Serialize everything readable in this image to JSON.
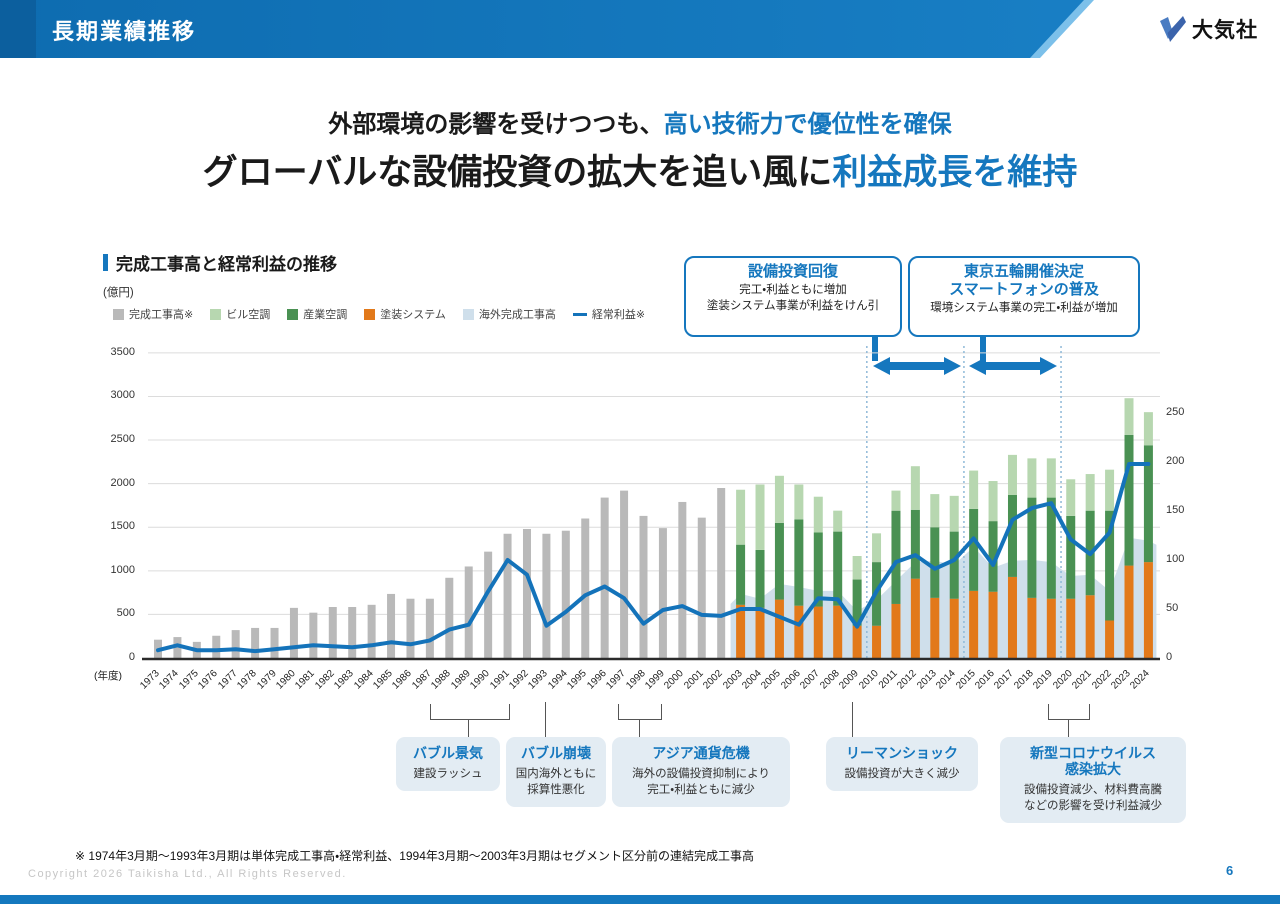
{
  "header": {
    "title": "長期業績推移",
    "logo_text": "大気社"
  },
  "headline": {
    "line1_black": "外部環境の影響を受けつつも、",
    "line1_blue": "高い技術力で優位性を確保",
    "line2_black": "グローバルな設備投資の拡大を追い風に",
    "line2_blue": "利益成長を維持"
  },
  "chart": {
    "section_title": "完成工事高と経常利益の推移",
    "unit_label": "(億円)",
    "x_axis_label": "(年度)",
    "callouts": [
      {
        "title": "設備投資回復",
        "body": "完工・利益ともに増加\n塗装システム事業が利益をけん引"
      },
      {
        "title": "東京五輪開催決定\nスマートフォンの普及",
        "body": "環境システム事業の完工・利益が増加"
      }
    ],
    "events": [
      {
        "title": "バブル景気",
        "body": "建設ラッシュ"
      },
      {
        "title": "バブル崩壊",
        "body": "国内海外ともに\n採算性悪化"
      },
      {
        "title": "アジア通貨危機",
        "body": "海外の設備投資抑制により\n完工・利益ともに減少"
      },
      {
        "title": "リーマンショック",
        "body": "設備投資が大きく減少"
      },
      {
        "title": "新型コロナウイルス\n感染拡大",
        "body": "設備投資減少、材料費高騰\nなどの影響を受け利益減少"
      }
    ]
  },
  "chart_data": {
    "type": "combo-stacked-bar-area-line",
    "categories": [
      "1973",
      "1974",
      "1975",
      "1976",
      "1977",
      "1978",
      "1979",
      "1980",
      "1981",
      "1982",
      "1983",
      "1984",
      "1985",
      "1986",
      "1987",
      "1988",
      "1989",
      "1990",
      "1991",
      "1992",
      "1993",
      "1994",
      "1995",
      "1996",
      "1997",
      "1998",
      "1999",
      "2000",
      "2001",
      "2002",
      "2003",
      "2004",
      "2005",
      "2006",
      "2007",
      "2008",
      "2009",
      "2010",
      "2011",
      "2012",
      "2013",
      "2014",
      "2015",
      "2016",
      "2017",
      "2018",
      "2019",
      "2020",
      "2021",
      "2022",
      "2023",
      "2024"
    ],
    "left_axis": {
      "label": "(億円)",
      "min": 0,
      "max": 3500,
      "step": 500
    },
    "right_axis": {
      "min": 0,
      "max": 250,
      "step": 50
    },
    "grid": true,
    "legend_position": "top-left",
    "dotted_boundaries": [
      36.5,
      41.5,
      46.5
    ],
    "series": [
      {
        "name": "完成工事高※",
        "type": "bar",
        "color": "#b9b9b9",
        "values": [
          210,
          240,
          185,
          255,
          320,
          345,
          345,
          575,
          520,
          585,
          585,
          610,
          735,
          680,
          680,
          920,
          1050,
          1220,
          1425,
          1480,
          1425,
          1460,
          1600,
          1840,
          1920,
          1630,
          1490,
          1790,
          1610,
          1950,
          null,
          null,
          null,
          null,
          null,
          null,
          null,
          null,
          null,
          null,
          null,
          null,
          null,
          null,
          null,
          null,
          null,
          null,
          null,
          null,
          null,
          null
        ]
      },
      {
        "name": "塗装システム",
        "type": "bar-stacked",
        "color": "#e2791a",
        "values": [
          null,
          null,
          null,
          null,
          null,
          null,
          null,
          null,
          null,
          null,
          null,
          null,
          null,
          null,
          null,
          null,
          null,
          null,
          null,
          null,
          null,
          null,
          null,
          null,
          null,
          null,
          null,
          null,
          null,
          null,
          610,
          575,
          670,
          600,
          590,
          600,
          370,
          370,
          620,
          910,
          690,
          680,
          770,
          760,
          930,
          690,
          680,
          680,
          720,
          430,
          1060,
          1100
        ]
      },
      {
        "name": "産業空調",
        "type": "bar-stacked",
        "color": "#4a9153",
        "values": [
          null,
          null,
          null,
          null,
          null,
          null,
          null,
          null,
          null,
          null,
          null,
          null,
          null,
          null,
          null,
          null,
          null,
          null,
          null,
          null,
          null,
          null,
          null,
          null,
          null,
          null,
          null,
          null,
          null,
          null,
          690,
          665,
          880,
          990,
          850,
          850,
          530,
          730,
          1070,
          790,
          810,
          770,
          940,
          810,
          940,
          1150,
          1160,
          950,
          970,
          1260,
          1500,
          1340
        ]
      },
      {
        "name": "ビル空調",
        "type": "bar-stacked",
        "color": "#b7d7b0",
        "values": [
          null,
          null,
          null,
          null,
          null,
          null,
          null,
          null,
          null,
          null,
          null,
          null,
          null,
          null,
          null,
          null,
          null,
          null,
          null,
          null,
          null,
          null,
          null,
          null,
          null,
          null,
          null,
          null,
          null,
          null,
          630,
          750,
          540,
          400,
          410,
          240,
          270,
          330,
          230,
          500,
          380,
          410,
          440,
          460,
          460,
          450,
          450,
          420,
          420,
          470,
          420,
          380
        ]
      },
      {
        "name": "海外完成工事高",
        "type": "area",
        "color": "#cfdfeb",
        "values": [
          null,
          null,
          null,
          null,
          null,
          null,
          null,
          null,
          null,
          null,
          null,
          null,
          null,
          null,
          null,
          null,
          null,
          null,
          null,
          null,
          null,
          null,
          null,
          null,
          null,
          null,
          null,
          null,
          null,
          null,
          735,
          680,
          850,
          815,
          770,
          770,
          540,
          665,
          885,
          1100,
          1115,
          1070,
          1275,
          1035,
          1115,
          1125,
          1100,
          940,
          955,
          770,
          1380,
          1345
        ]
      },
      {
        "name": "経常利益※",
        "type": "line",
        "axis": "right",
        "color": "#1473ba",
        "values": [
          8,
          13,
          8,
          8,
          9,
          7,
          9,
          11,
          13,
          12,
          11,
          13,
          16,
          14,
          18,
          29,
          34,
          68,
          100,
          85,
          33,
          47,
          64,
          73,
          61,
          35,
          49,
          53,
          44,
          43,
          50,
          50,
          42,
          34,
          61,
          60,
          32,
          68,
          98,
          105,
          91,
          100,
          122,
          95,
          141,
          153,
          158,
          121,
          106,
          128,
          198,
          198
        ]
      }
    ]
  },
  "footnote": "※ 1974年3月期～1993年3月期は単体完成工事高・経常利益、1994年3月期～2003年3月期はセグメント区分前の連結完成工事高",
  "footer": {
    "copyright": "Copyright  2026 Taikisha Ltd., All Rights Reserved.",
    "page_number": "6"
  }
}
